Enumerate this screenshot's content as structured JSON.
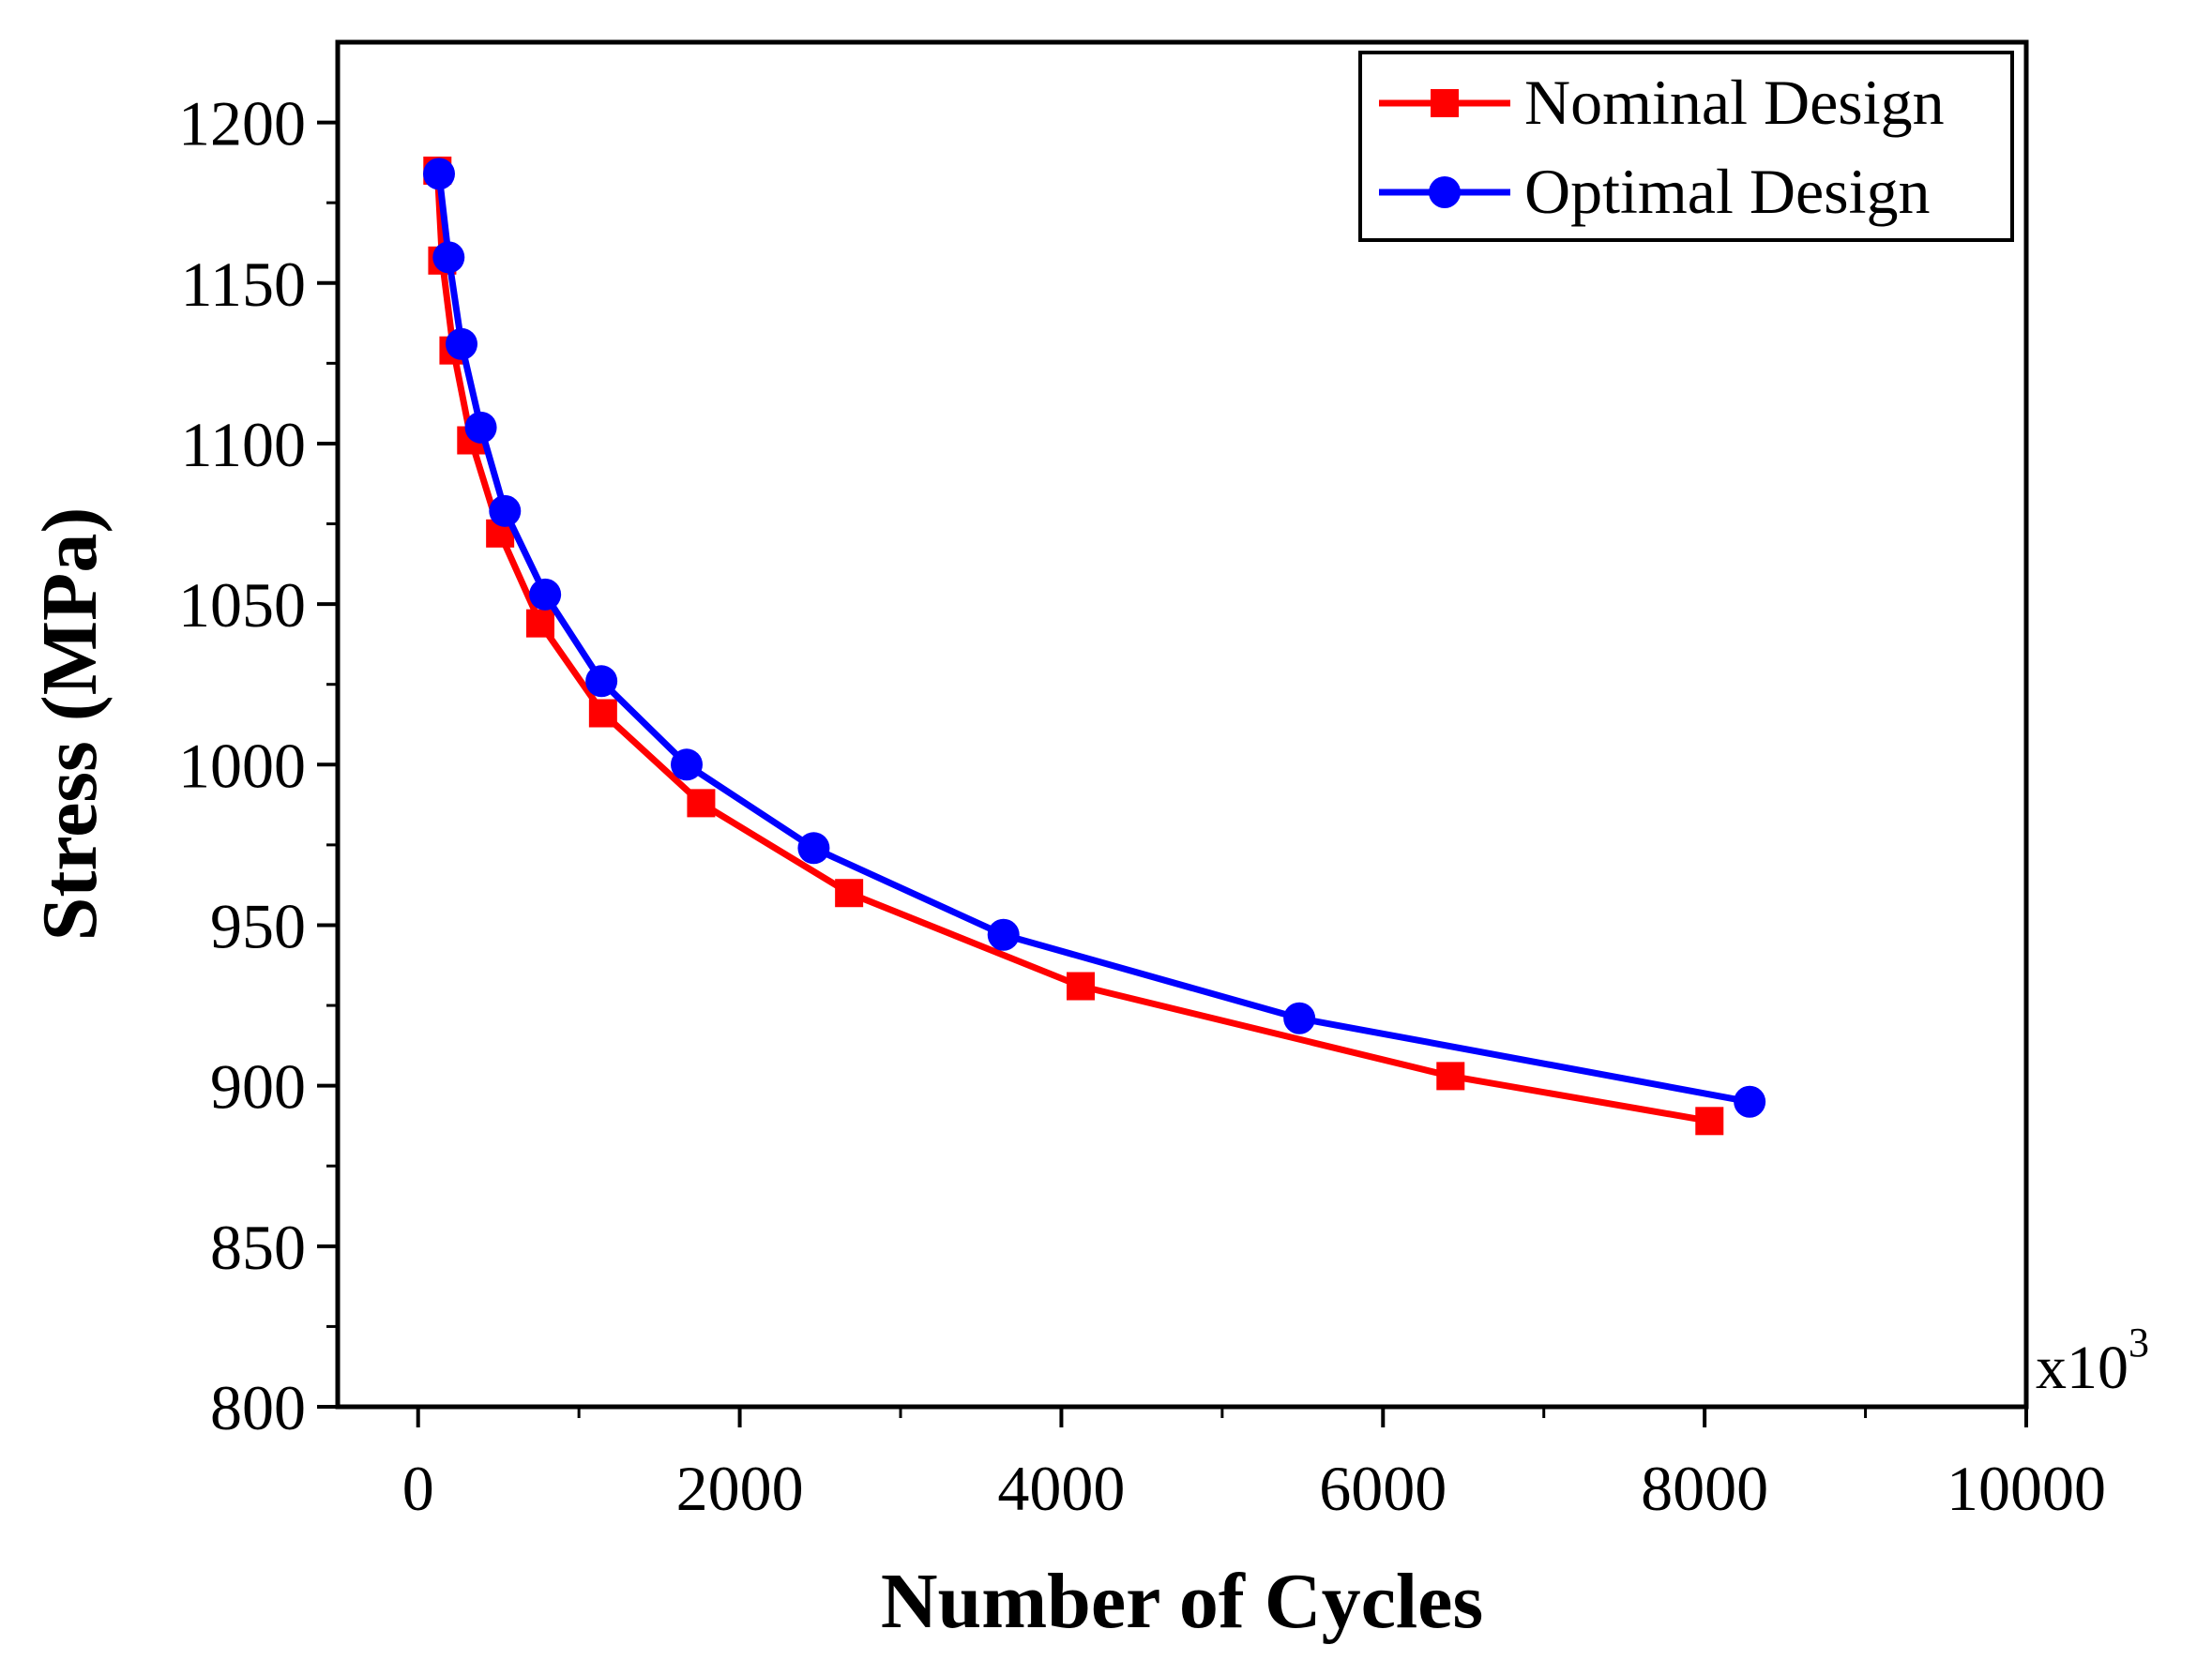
{
  "chart_data": {
    "type": "line",
    "title": "",
    "xlabel": "Number of Cycles",
    "ylabel": "Stress (MPa)",
    "x_multiplier": "x10",
    "x_multiplier_exp": "3",
    "xlim": [
      -500,
      10000
    ],
    "ylim": [
      800,
      1225
    ],
    "x_ticks": [
      0,
      2000,
      4000,
      6000,
      8000,
      10000
    ],
    "x_tick_labels": [
      "0",
      "2000",
      "4000",
      "6000",
      "8000",
      "10000"
    ],
    "x_minor_step": 1000,
    "y_ticks": [
      800,
      850,
      900,
      950,
      1000,
      1050,
      1100,
      1150,
      1200
    ],
    "y_tick_labels": [
      "800",
      "850",
      "900",
      "950",
      "1000",
      "1050",
      "1100",
      "1150",
      "1200"
    ],
    "y_minor_step": 25,
    "legend_position": "top-right",
    "series": [
      {
        "name": "Nominal Design",
        "color": "#ff0000",
        "marker": "square",
        "x": [
          120,
          150,
          220,
          330,
          510,
          760,
          1150,
          1760,
          2680,
          4120,
          6420,
          8030
        ],
        "y": [
          1185,
          1157,
          1129,
          1101,
          1072,
          1044,
          1016,
          988,
          960,
          931,
          903,
          889
        ]
      },
      {
        "name": "Optimal Design",
        "color": "#0000ff",
        "marker": "circle",
        "x": [
          130,
          190,
          270,
          390,
          540,
          790,
          1140,
          1670,
          2460,
          3640,
          5480,
          8280
        ],
        "y": [
          1184,
          1158,
          1131,
          1105,
          1079,
          1053,
          1026,
          1000,
          974,
          947,
          921,
          895
        ]
      }
    ]
  }
}
